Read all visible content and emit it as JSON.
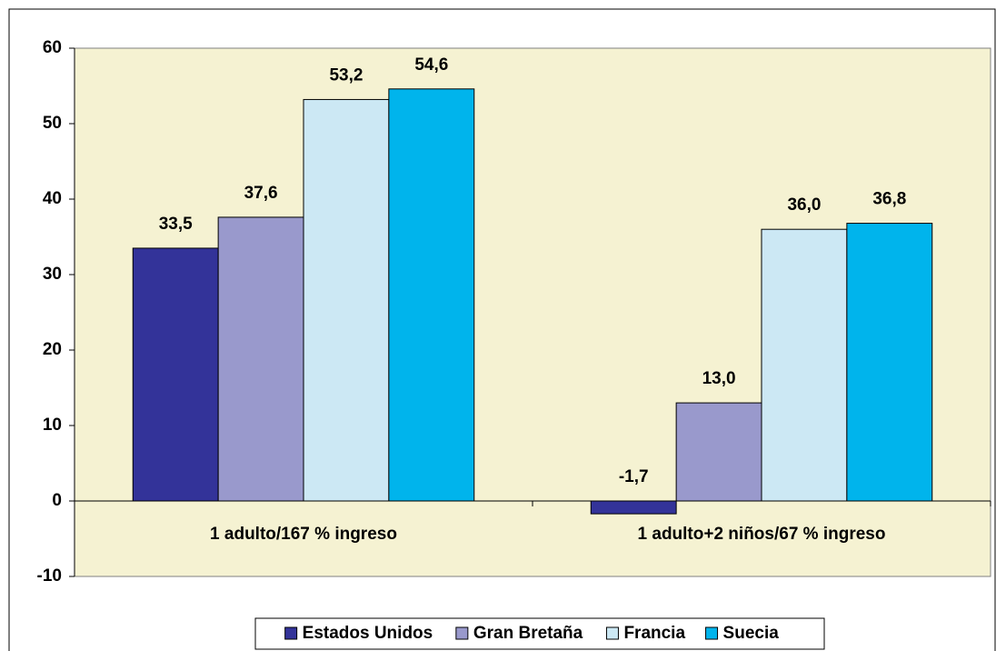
{
  "chart_data": {
    "type": "bar",
    "categories": [
      "1 adulto/167 % ingreso",
      "1 adulto+2 niños/67 % ingreso"
    ],
    "series": [
      {
        "name": "Estados Unidos",
        "color": "#333399",
        "values": [
          33.5,
          -1.7
        ],
        "value_labels": [
          "33,5",
          "-1,7"
        ]
      },
      {
        "name": "Gran Bretaña",
        "color": "#9999cc",
        "values": [
          37.6,
          13.0
        ],
        "value_labels": [
          "37,6",
          "13,0"
        ]
      },
      {
        "name": "Francia",
        "color": "#cce8f4",
        "values": [
          53.2,
          36.0
        ],
        "value_labels": [
          "53,2",
          "36,0"
        ]
      },
      {
        "name": "Suecia",
        "color": "#00b4ec",
        "values": [
          54.6,
          36.8
        ],
        "value_labels": [
          "54,6",
          "36,8"
        ]
      }
    ],
    "ylim": [
      -10,
      60
    ],
    "yticks": [
      -10,
      0,
      10,
      20,
      30,
      40,
      50,
      60
    ],
    "grid": false,
    "legend": "bottom"
  }
}
